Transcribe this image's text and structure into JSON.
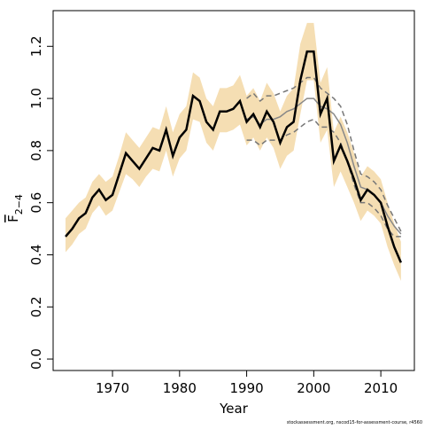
{
  "chart_data": {
    "type": "line",
    "ylabel": {
      "main": "F",
      "sub": "2−4"
    },
    "xlabel": "Year",
    "footer": "stockassessment.org, nscod15-for-assessment-course, r4560",
    "x": [
      1963,
      1964,
      1965,
      1966,
      1967,
      1968,
      1969,
      1970,
      1971,
      1972,
      1973,
      1974,
      1975,
      1976,
      1977,
      1978,
      1979,
      1980,
      1981,
      1982,
      1983,
      1984,
      1985,
      1986,
      1987,
      1988,
      1989,
      1990,
      1991,
      1992,
      1993,
      1994,
      1995,
      1996,
      1997,
      1998,
      1999,
      2000,
      2001,
      2002,
      2003,
      2004,
      2005,
      2006,
      2007,
      2008,
      2009,
      2010,
      2011,
      2012,
      2013
    ],
    "band": {
      "color": "#f5deb3",
      "upper": [
        0.54,
        0.57,
        0.6,
        0.62,
        0.68,
        0.71,
        0.68,
        0.7,
        0.78,
        0.87,
        0.84,
        0.81,
        0.85,
        0.89,
        0.88,
        0.97,
        0.87,
        0.94,
        0.97,
        1.1,
        1.08,
        1.0,
        0.97,
        1.04,
        1.04,
        1.05,
        1.09,
        1.01,
        1.04,
        0.99,
        1.06,
        1.02,
        0.95,
        1.01,
        1.04,
        1.21,
        1.29,
        1.29,
        1.06,
        1.12,
        0.87,
        0.93,
        0.87,
        0.79,
        0.7,
        0.74,
        0.72,
        0.69,
        0.6,
        0.52,
        0.45
      ],
      "lower": [
        0.41,
        0.44,
        0.48,
        0.5,
        0.56,
        0.59,
        0.55,
        0.57,
        0.64,
        0.71,
        0.69,
        0.66,
        0.7,
        0.73,
        0.72,
        0.8,
        0.7,
        0.77,
        0.8,
        0.92,
        0.91,
        0.83,
        0.8,
        0.87,
        0.87,
        0.88,
        0.9,
        0.82,
        0.85,
        0.8,
        0.85,
        0.81,
        0.73,
        0.78,
        0.8,
        0.94,
        1.07,
        1.07,
        0.83,
        0.88,
        0.66,
        0.72,
        0.66,
        0.6,
        0.53,
        0.57,
        0.55,
        0.52,
        0.43,
        0.36,
        0.3
      ]
    },
    "series": [
      {
        "color": "#777777",
        "dash": true,
        "values": [
          null,
          null,
          null,
          null,
          null,
          null,
          null,
          null,
          null,
          null,
          null,
          null,
          null,
          null,
          null,
          null,
          null,
          null,
          null,
          null,
          null,
          null,
          null,
          null,
          null,
          null,
          null,
          1.0,
          1.02,
          0.99,
          1.01,
          1.01,
          1.02,
          1.03,
          1.04,
          1.06,
          1.08,
          1.08,
          1.04,
          1.02,
          1.0,
          0.97,
          0.9,
          0.8,
          0.71,
          0.7,
          0.68,
          0.65,
          0.59,
          0.54,
          0.49
        ]
      },
      {
        "color": "#777777",
        "dash": true,
        "values": [
          null,
          null,
          null,
          null,
          null,
          null,
          null,
          null,
          null,
          null,
          null,
          null,
          null,
          null,
          null,
          null,
          null,
          null,
          null,
          null,
          null,
          null,
          null,
          null,
          null,
          null,
          null,
          0.84,
          0.84,
          0.82,
          0.84,
          0.84,
          0.84,
          0.86,
          0.87,
          0.89,
          0.91,
          0.92,
          0.89,
          0.89,
          0.87,
          0.83,
          0.76,
          0.67,
          0.6,
          0.6,
          0.58,
          0.55,
          0.5,
          0.47,
          0.47
        ]
      },
      {
        "color": "#888888",
        "dash": false,
        "values": [
          null,
          null,
          null,
          null,
          null,
          null,
          null,
          null,
          null,
          null,
          null,
          null,
          null,
          null,
          null,
          null,
          null,
          null,
          null,
          null,
          null,
          null,
          null,
          null,
          null,
          null,
          null,
          0.92,
          0.93,
          0.9,
          0.92,
          0.92,
          0.93,
          0.95,
          0.96,
          0.98,
          1.0,
          1.0,
          0.97,
          0.96,
          0.94,
          0.9,
          0.83,
          0.74,
          0.66,
          0.65,
          0.63,
          0.6,
          0.55,
          0.51,
          0.48
        ]
      },
      {
        "color": "#000000",
        "dash": false,
        "width": 2.5,
        "values": [
          0.47,
          0.5,
          0.54,
          0.56,
          0.62,
          0.65,
          0.61,
          0.63,
          0.71,
          0.79,
          0.76,
          0.73,
          0.77,
          0.81,
          0.8,
          0.88,
          0.78,
          0.85,
          0.88,
          1.01,
          0.99,
          0.91,
          0.88,
          0.95,
          0.95,
          0.96,
          0.99,
          0.91,
          0.94,
          0.89,
          0.95,
          0.91,
          0.83,
          0.89,
          0.91,
          1.07,
          1.18,
          1.18,
          0.94,
          1.0,
          0.76,
          0.82,
          0.76,
          0.69,
          0.61,
          0.65,
          0.63,
          0.6,
          0.51,
          0.43,
          0.37
        ]
      }
    ],
    "xlim": [
      1961.15,
      2015
    ],
    "ylim": [
      -0.044,
      1.337
    ],
    "xticks": [
      1970,
      1980,
      1990,
      2000,
      2010
    ],
    "yticks": [
      {
        "value": 0,
        "label": "0.0"
      },
      0.2,
      0.4,
      0.6,
      0.8,
      {
        "value": 1,
        "label": "1.0"
      },
      1.2
    ],
    "grid": false
  }
}
